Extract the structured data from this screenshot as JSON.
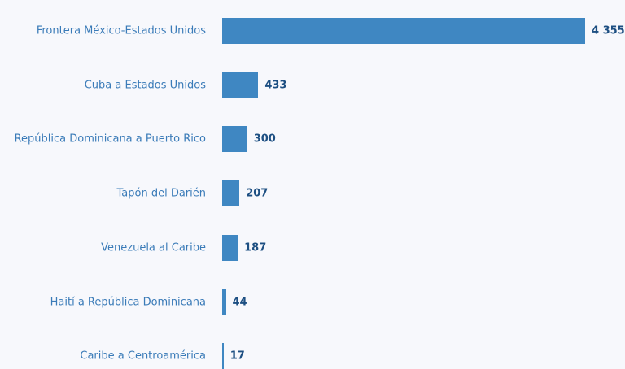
{
  "chart_data": {
    "type": "bar",
    "orientation": "horizontal",
    "categories": [
      "Frontera México-Estados Unidos",
      "Cuba a Estados Unidos",
      "República Dominicana a Puerto Rico",
      "Tapón del Darién",
      "Venezuela al Caribe",
      "Haití a República Dominicana",
      "Caribe a Centroamérica"
    ],
    "values": [
      4355,
      433,
      300,
      207,
      187,
      44,
      17
    ],
    "value_labels": [
      "4 355",
      "433",
      "300",
      "207",
      "187",
      "44",
      "17"
    ],
    "color": "#3f87c2"
  }
}
